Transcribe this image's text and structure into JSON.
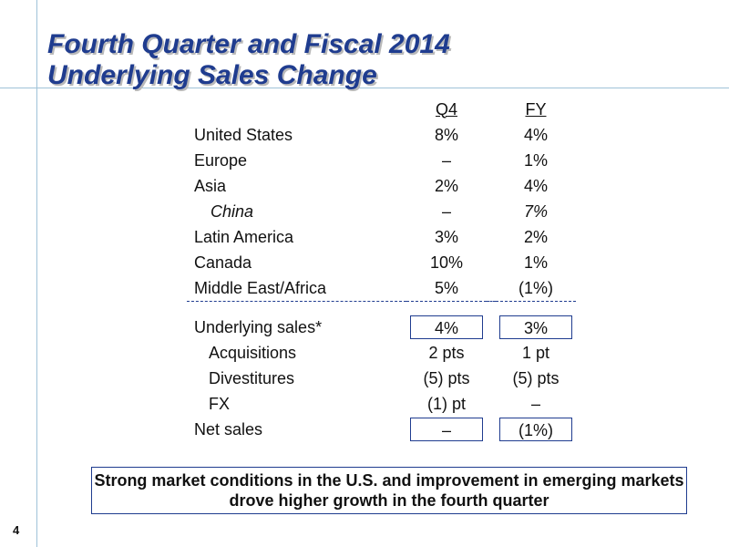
{
  "slide": {
    "title_line1": "Fourth Quarter and Fiscal 2014",
    "title_line2": "Underlying Sales Change",
    "page_number": "4",
    "callout": "Strong market conditions in the U.S. and improvement in emerging markets drove higher growth in the fourth quarter"
  },
  "table": {
    "col_q4": "Q4",
    "col_fy": "FY",
    "regions": [
      {
        "label": "United States",
        "q4": "8%",
        "fy": "4%"
      },
      {
        "label": "Europe",
        "q4": "–",
        "fy": "1%"
      },
      {
        "label": "Asia",
        "q4": "2%",
        "fy": "4%"
      },
      {
        "label": "China",
        "q4": "–",
        "fy": "7%"
      },
      {
        "label": "Latin America",
        "q4": "3%",
        "fy": "2%"
      },
      {
        "label": "Canada",
        "q4": "10%",
        "fy": "1%"
      },
      {
        "label": "Middle East/Africa",
        "q4": "5%",
        "fy": "(1%)"
      }
    ],
    "summary": [
      {
        "label": "Underlying sales*",
        "q4": "4%",
        "fy": "3%"
      },
      {
        "label": "Acquisitions",
        "q4": "2 pts",
        "fy": "1 pt"
      },
      {
        "label": "Divestitures",
        "q4": "(5) pts",
        "fy": "(5) pts"
      },
      {
        "label": "FX",
        "q4": "(1) pt",
        "fy": "–"
      },
      {
        "label": "Net sales",
        "q4": "–",
        "fy": "(1%)"
      }
    ]
  }
}
